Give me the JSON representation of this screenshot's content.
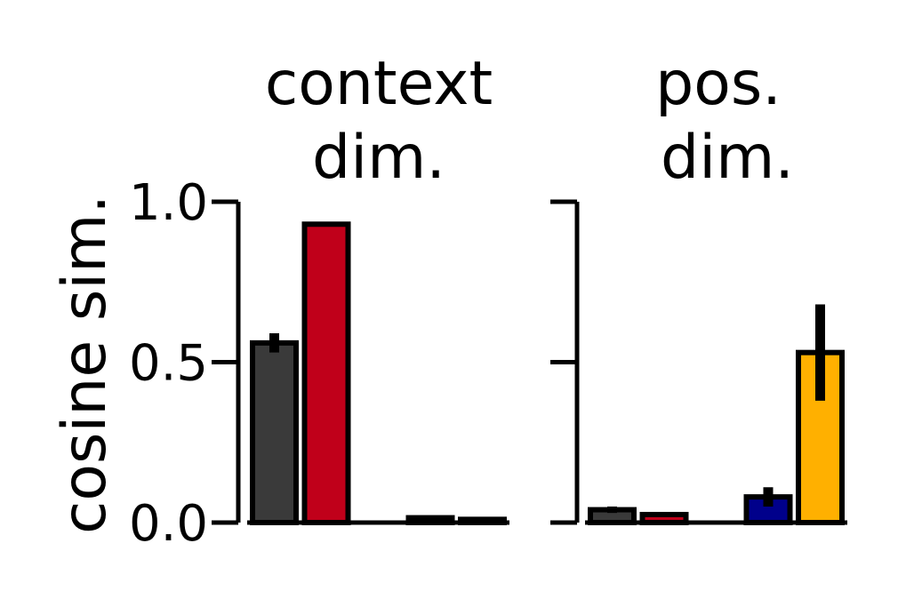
{
  "chart_data": [
    {
      "type": "bar",
      "title_lines": [
        "context",
        "dim."
      ],
      "ylabel": "cosine sim.",
      "ylim": [
        0,
        1.0
      ],
      "yticks": [
        0.0,
        0.5,
        1.0
      ],
      "ytick_labels": [
        "0.0",
        "0.5",
        "1.0"
      ],
      "show_ytick_labels": true,
      "values": [
        0.56,
        0.93,
        null,
        0.015,
        0.01
      ],
      "errors": [
        0.03,
        0.0,
        null,
        0.0,
        0.0
      ],
      "colors": [
        "#3a3a3a",
        "#c0001a",
        null,
        "#00008b",
        "#ffb000"
      ]
    },
    {
      "type": "bar",
      "title_lines": [
        "pos.",
        "dim."
      ],
      "ylim": [
        0,
        1.0
      ],
      "yticks": [
        0.0,
        0.5,
        1.0
      ],
      "show_ytick_labels": false,
      "values": [
        0.04,
        0.025,
        null,
        0.08,
        0.53
      ],
      "errors": [
        0.01,
        0.0,
        null,
        0.03,
        0.15
      ],
      "colors": [
        "#3a3a3a",
        "#c0001a",
        null,
        "#00008b",
        "#ffb000"
      ]
    }
  ]
}
